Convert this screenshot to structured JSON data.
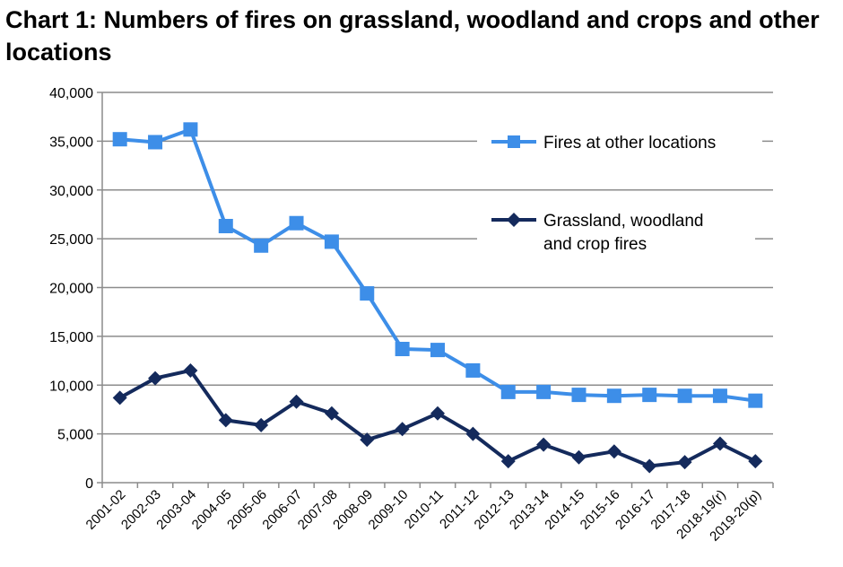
{
  "chart_data": {
    "type": "line",
    "title": "Chart 1: Numbers of fires on grassland, woodland and crops and other locations",
    "xlabel": "",
    "ylabel": "",
    "categories": [
      "2001-02",
      "2002-03",
      "2003-04",
      "2004-05",
      "2005-06",
      "2006-07",
      "2007-08",
      "2008-09",
      "2009-10",
      "2010-11",
      "2011-12",
      "2012-13",
      "2013-14",
      "2014-15",
      "2015-16",
      "2016-17",
      "2017-18",
      "2018-19(r)",
      "2019-20(p)"
    ],
    "ylim": [
      0,
      40000
    ],
    "yticks": [
      "0",
      "5,000",
      "10,000",
      "15,000",
      "20,000",
      "25,000",
      "30,000",
      "35,000",
      "40,000"
    ],
    "grid": true,
    "legend_position": "top-right",
    "series": [
      {
        "name": "Fires at other locations",
        "color": "#3d8ee8",
        "marker": "square",
        "values": [
          35200,
          34900,
          36200,
          26300,
          24300,
          26600,
          24700,
          19400,
          13700,
          13600,
          11500,
          9300,
          9300,
          9000,
          8900,
          9000,
          8900,
          8900,
          8400
        ]
      },
      {
        "name": "Grassland, woodland and crop fires",
        "legend_lines": [
          "Grassland, woodland",
          "and crop fires"
        ],
        "color": "#142a5c",
        "marker": "diamond",
        "values": [
          8700,
          10700,
          11500,
          6400,
          5900,
          8300,
          7100,
          4400,
          5500,
          7100,
          5000,
          2200,
          3900,
          2600,
          3200,
          1700,
          2100,
          4000,
          2200
        ]
      }
    ]
  }
}
